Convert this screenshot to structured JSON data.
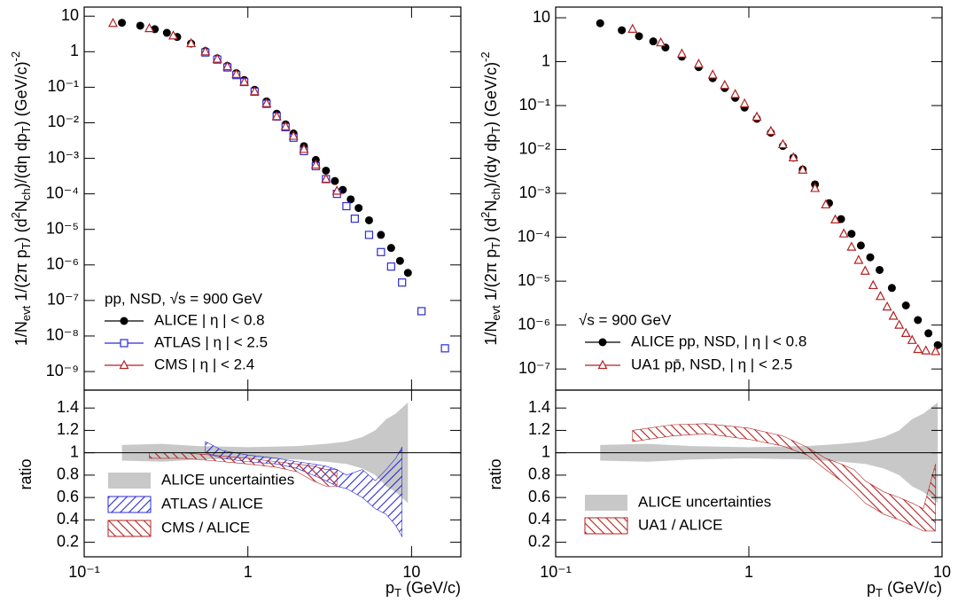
{
  "chart_data": [
    {
      "type": "scatter",
      "log_x": true,
      "log_y": true,
      "xlim": [
        0.1,
        20
      ],
      "xticks": [
        0.1,
        1,
        10
      ],
      "ylim": [
        3e-10,
        18
      ],
      "yticks": [
        {
          "value": 1e-09,
          "label": "10⁻⁹"
        },
        {
          "value": 1e-08,
          "label": "10⁻⁸"
        },
        {
          "value": 1e-07,
          "label": "10⁻⁷"
        },
        {
          "value": 1e-06,
          "label": "10⁻⁶"
        },
        {
          "value": 1e-05,
          "label": "10⁻⁵"
        },
        {
          "value": 0.0001,
          "label": "10⁻⁴"
        },
        {
          "value": 0.001,
          "label": "10⁻³"
        },
        {
          "value": 0.01,
          "label": "10⁻²"
        },
        {
          "value": 0.1,
          "label": "10⁻¹"
        },
        1,
        10
      ],
      "ylabel": [
        "1/N",
        "evt",
        " 1/(2π p",
        "T",
        ") (d",
        "2",
        "N",
        "ch",
        ")/(dη dp",
        "T",
        ") (GeV/c)",
        "-2"
      ],
      "annotation": "pp, NSD, √s = 900 GeV",
      "series": [
        {
          "name": "ALICE | η | < 0.8",
          "color": "#000000",
          "marker": "circle",
          "x": [
            0.17,
            0.22,
            0.27,
            0.32,
            0.37,
            0.45,
            0.55,
            0.65,
            0.75,
            0.85,
            0.95,
            1.1,
            1.3,
            1.5,
            1.7,
            1.9,
            2.2,
            2.6,
            3.0,
            3.4,
            3.8,
            4.25,
            4.75,
            5.5,
            6.5,
            7.5,
            8.5,
            9.5
          ],
          "values": [
            6.5,
            5.4,
            4.3,
            3.4,
            2.6,
            1.7,
            1.05,
            0.65,
            0.4,
            0.25,
            0.16,
            0.085,
            0.04,
            0.018,
            0.009,
            0.005,
            0.0022,
            0.0009,
            0.00045,
            0.00023,
            0.00013,
            7e-05,
            4e-05,
            1.8e-05,
            7e-06,
            3e-06,
            1.3e-06,
            6e-07
          ]
        },
        {
          "name": "ATLAS | η | < 2.5",
          "color": "#2b2bd6",
          "marker": "square",
          "x": [
            0.55,
            0.65,
            0.75,
            0.85,
            0.95,
            1.1,
            1.3,
            1.5,
            1.7,
            1.9,
            2.2,
            2.6,
            3.0,
            3.5,
            4.0,
            4.5,
            5.5,
            6.5,
            7.5,
            8.75,
            11.5,
            16
          ],
          "values": [
            0.95,
            0.6,
            0.36,
            0.22,
            0.14,
            0.075,
            0.034,
            0.015,
            0.0075,
            0.0038,
            0.0016,
            0.0006,
            0.00026,
            0.0001,
            4.5e-05,
            2e-05,
            7e-06,
            2.3e-06,
            9e-07,
            3.2e-07,
            5e-08,
            4.5e-09
          ]
        },
        {
          "name": "CMS | η | < 2.4",
          "color": "#b22222",
          "marker": "triangle",
          "x": [
            0.15,
            0.25,
            0.35,
            0.45,
            0.55,
            0.65,
            0.75,
            0.85,
            0.95,
            1.1,
            1.3,
            1.5,
            1.7,
            1.9,
            2.2,
            2.6,
            3.0,
            3.5
          ],
          "values": [
            6.3,
            4.5,
            2.8,
            1.7,
            1.0,
            0.62,
            0.38,
            0.23,
            0.14,
            0.075,
            0.035,
            0.015,
            0.0078,
            0.0042,
            0.0018,
            0.00065,
            0.00026,
            0.00012
          ]
        }
      ]
    },
    {
      "type": "band",
      "log_x": true,
      "log_y": false,
      "xlim": [
        0.1,
        20
      ],
      "xticks": [
        {
          "value": 0.1,
          "label": "10⁻¹"
        },
        1,
        10
      ],
      "ylim": [
        0.07,
        1.56
      ],
      "yticks": [
        0.2,
        0.4,
        0.6,
        0.8,
        1,
        1.2,
        1.4
      ],
      "reference_line": 1,
      "ylabel": "ratio",
      "xlabel": [
        "p",
        "T",
        " (GeV/c)"
      ],
      "series": [
        {
          "name": "ALICE uncertainties",
          "color": "#c8c8c8",
          "fill": "solid",
          "x": [
            0.17,
            0.3,
            0.5,
            1,
            2,
            3,
            4,
            5,
            6,
            7,
            8,
            9.5
          ],
          "upper": [
            1.07,
            1.08,
            1.06,
            1.05,
            1.06,
            1.08,
            1.1,
            1.14,
            1.2,
            1.3,
            1.35,
            1.45
          ],
          "lower": [
            0.93,
            0.92,
            0.94,
            0.95,
            0.94,
            0.92,
            0.9,
            0.86,
            0.8,
            0.7,
            0.65,
            0.55
          ]
        },
        {
          "name": "ATLAS / ALICE",
          "color": "#2b2bd6",
          "fill": "hatch-up",
          "x": [
            0.55,
            0.7,
            1,
            1.5,
            2,
            2.5,
            3,
            3.5,
            4,
            5,
            6,
            7,
            8,
            8.75
          ],
          "upper": [
            1.1,
            1.02,
            0.98,
            0.95,
            0.92,
            0.9,
            0.88,
            0.85,
            0.8,
            0.85,
            0.75,
            0.85,
            0.95,
            1.05
          ],
          "lower": [
            1.0,
            0.95,
            0.92,
            0.9,
            0.86,
            0.8,
            0.75,
            0.7,
            0.68,
            0.6,
            0.5,
            0.45,
            0.35,
            0.25
          ]
        },
        {
          "name": "CMS / ALICE",
          "color": "#b22222",
          "fill": "hatch-down",
          "x": [
            0.25,
            0.4,
            0.6,
            1,
            1.5,
            2,
            2.5,
            3,
            3.5
          ],
          "upper": [
            1.0,
            1.0,
            0.98,
            0.95,
            0.92,
            0.9,
            0.88,
            0.85,
            0.85
          ],
          "lower": [
            0.95,
            0.95,
            0.93,
            0.9,
            0.87,
            0.83,
            0.75,
            0.7,
            0.7
          ]
        }
      ]
    },
    {
      "type": "scatter",
      "log_x": true,
      "log_y": true,
      "xlim": [
        0.1,
        10
      ],
      "xticks": [
        0.1,
        1,
        10
      ],
      "ylim": [
        3.3e-08,
        17.5
      ],
      "yticks": [
        {
          "value": 1e-07,
          "label": "10⁻⁷"
        },
        {
          "value": 1e-06,
          "label": "10⁻⁶"
        },
        {
          "value": 1e-05,
          "label": "10⁻⁵"
        },
        {
          "value": 0.0001,
          "label": "10⁻⁴"
        },
        {
          "value": 0.001,
          "label": "10⁻³"
        },
        {
          "value": 0.01,
          "label": "10⁻²"
        },
        {
          "value": 0.1,
          "label": "10⁻¹"
        },
        1,
        10
      ],
      "ylabel": [
        "1/N",
        "evt",
        " 1/(2π p",
        "T",
        ") (d",
        "2",
        "N",
        "ch",
        ")/(dy dp",
        "T",
        ") (GeV/c)",
        "-2"
      ],
      "annotation": "√s = 900 GeV",
      "series": [
        {
          "name": "ALICE pp, NSD, | η | < 0.8",
          "color": "#000000",
          "marker": "circle",
          "x": [
            0.17,
            0.22,
            0.27,
            0.32,
            0.37,
            0.45,
            0.55,
            0.65,
            0.75,
            0.85,
            0.95,
            1.1,
            1.3,
            1.5,
            1.7,
            1.9,
            2.2,
            2.6,
            3.0,
            3.4,
            3.8,
            4.25,
            4.75,
            5.5,
            6.5,
            7.5,
            8.5,
            9.5
          ],
          "values": [
            7.5,
            5.2,
            3.8,
            2.9,
            2.1,
            1.3,
            0.75,
            0.42,
            0.25,
            0.15,
            0.09,
            0.05,
            0.024,
            0.012,
            0.0065,
            0.0035,
            0.0016,
            0.0006,
            0.00026,
            0.00012,
            6.5e-05,
            3.5e-05,
            1.8e-05,
            7e-06,
            2.8e-06,
            1.3e-06,
            6.5e-07,
            3.5e-07
          ]
        },
        {
          "name": "UA1 pp̄, NSD, | η | < 2.5",
          "color": "#b22222",
          "marker": "triangle",
          "x": [
            0.25,
            0.35,
            0.45,
            0.55,
            0.65,
            0.75,
            0.85,
            0.95,
            1.1,
            1.3,
            1.5,
            1.7,
            1.9,
            2.2,
            2.5,
            2.8,
            3.1,
            3.4,
            3.7,
            4.0,
            4.4,
            4.8,
            5.2,
            5.6,
            6.0,
            6.5,
            7.0,
            7.5,
            8.25,
            9.25
          ],
          "values": [
            5.5,
            2.7,
            1.5,
            0.88,
            0.5,
            0.29,
            0.18,
            0.11,
            0.055,
            0.026,
            0.013,
            0.0065,
            0.0034,
            0.0013,
            0.00055,
            0.00025,
            0.00012,
            6e-05,
            3e-05,
            1.7e-05,
            8e-06,
            4.5e-06,
            2.6e-06,
            1.6e-06,
            1e-06,
            6.5e-07,
            4.5e-07,
            2.8e-07,
            2.6e-07,
            2.5e-07
          ]
        }
      ]
    },
    {
      "type": "band",
      "log_x": true,
      "log_y": false,
      "xlim": [
        0.1,
        10
      ],
      "xticks": [
        {
          "value": 0.1,
          "label": "10⁻¹"
        },
        1,
        10
      ],
      "ylim": [
        0.07,
        1.56
      ],
      "yticks": [
        0.2,
        0.4,
        0.6,
        0.8,
        1,
        1.2,
        1.4
      ],
      "reference_line": 1,
      "ylabel": "ratio",
      "xlabel": [
        "p",
        "T",
        " (GeV/c)"
      ],
      "series": [
        {
          "name": "ALICE uncertainties",
          "color": "#c8c8c8",
          "fill": "solid",
          "x": [
            0.17,
            0.3,
            0.5,
            1,
            2,
            3,
            4,
            5,
            6,
            7,
            8,
            9.5
          ],
          "upper": [
            1.07,
            1.08,
            1.06,
            1.05,
            1.06,
            1.08,
            1.1,
            1.14,
            1.2,
            1.3,
            1.35,
            1.45
          ],
          "lower": [
            0.93,
            0.92,
            0.94,
            0.95,
            0.94,
            0.92,
            0.9,
            0.86,
            0.8,
            0.7,
            0.65,
            0.55
          ]
        },
        {
          "name": "UA1 / ALICE",
          "color": "#b22222",
          "fill": "hatch-down",
          "x": [
            0.25,
            0.4,
            0.6,
            1,
            1.5,
            2,
            2.5,
            3,
            3.5,
            4,
            5,
            6,
            7,
            8,
            9.25
          ],
          "upper": [
            1.2,
            1.25,
            1.26,
            1.22,
            1.15,
            1.05,
            0.95,
            0.9,
            0.85,
            0.75,
            0.65,
            0.6,
            0.55,
            0.5,
            0.9
          ],
          "lower": [
            1.1,
            1.15,
            1.17,
            1.12,
            1.06,
            0.98,
            0.85,
            0.75,
            0.65,
            0.55,
            0.45,
            0.4,
            0.35,
            0.3,
            0.3
          ]
        }
      ]
    }
  ]
}
